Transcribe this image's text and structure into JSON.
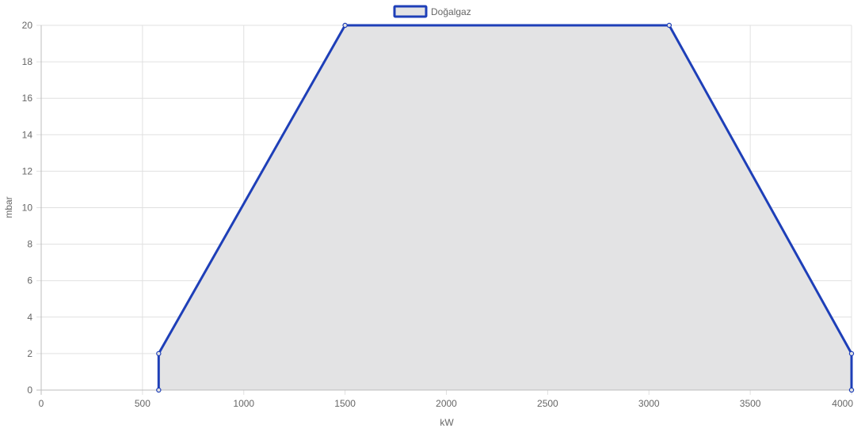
{
  "chart_data": {
    "type": "area",
    "title": "",
    "xlabel": "kW",
    "ylabel": "mbar",
    "xlim": [
      0,
      4000
    ],
    "ylim": [
      0,
      20
    ],
    "x_ticks": [
      "0",
      "500",
      "1000",
      "1500",
      "2000",
      "2500",
      "3000",
      "3500",
      "4000"
    ],
    "y_ticks": [
      "0",
      "2",
      "4",
      "6",
      "8",
      "10",
      "12",
      "14",
      "16",
      "18",
      "20"
    ],
    "grid": true,
    "legend_position": "top",
    "series": [
      {
        "name": "Doğalgaz",
        "color": "#1e3fb8",
        "fill_color": "#e3e3e4",
        "points": [
          {
            "x": 580,
            "y": 0
          },
          {
            "x": 580,
            "y": 2
          },
          {
            "x": 1500,
            "y": 20
          },
          {
            "x": 3100,
            "y": 20
          },
          {
            "x": 4000,
            "y": 2
          },
          {
            "x": 4000,
            "y": 0
          }
        ]
      }
    ]
  }
}
